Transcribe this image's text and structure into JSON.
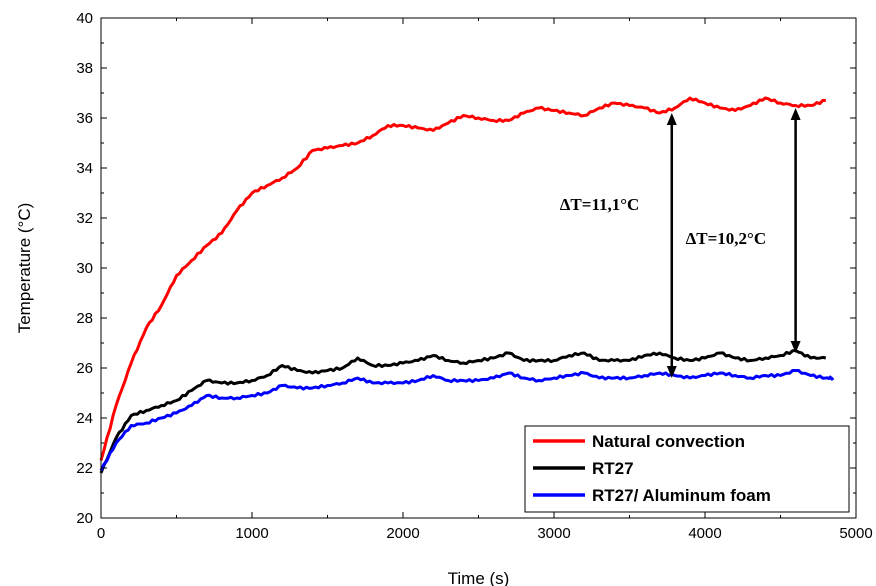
{
  "chart_data": {
    "type": "line",
    "xlabel": "Time (s)",
    "ylabel": "Temperature (°C)",
    "xlim": [
      0,
      5000
    ],
    "ylim": [
      20,
      40
    ],
    "xticks": [
      0,
      1000,
      2000,
      3000,
      4000,
      5000
    ],
    "yticks": [
      20,
      22,
      24,
      26,
      28,
      30,
      32,
      34,
      36,
      38,
      40
    ],
    "x_tick_labels": [
      "0",
      "1000",
      "2000",
      "3000",
      "4000",
      "5000"
    ],
    "y_tick_labels": [
      "20",
      "22",
      "24",
      "26",
      "28",
      "30",
      "32",
      "34",
      "36",
      "38",
      "40"
    ],
    "grid": false,
    "legend_position": "bottom-right",
    "series": [
      {
        "name": "Natural convection",
        "color": "#ff0000",
        "x": [
          0,
          100,
          200,
          300,
          400,
          500,
          600,
          700,
          800,
          900,
          1000,
          1100,
          1200,
          1300,
          1400,
          1500,
          1600,
          1700,
          1800,
          1900,
          2000,
          2100,
          2200,
          2300,
          2400,
          2500,
          2600,
          2700,
          2800,
          2900,
          3000,
          3100,
          3200,
          3300,
          3400,
          3500,
          3600,
          3700,
          3800,
          3900,
          4000,
          4100,
          4200,
          4300,
          4400,
          4500,
          4600,
          4700,
          4800
        ],
        "y": [
          22.3,
          24.5,
          26.2,
          27.6,
          28.5,
          29.7,
          30.3,
          30.9,
          31.4,
          32.3,
          33.0,
          33.3,
          33.6,
          34.0,
          34.7,
          34.8,
          34.9,
          35.0,
          35.3,
          35.7,
          35.7,
          35.6,
          35.5,
          35.8,
          36.1,
          36.0,
          35.9,
          35.9,
          36.2,
          36.4,
          36.3,
          36.2,
          36.1,
          36.4,
          36.6,
          36.5,
          36.4,
          36.2,
          36.4,
          36.8,
          36.6,
          36.4,
          36.3,
          36.5,
          36.8,
          36.6,
          36.5,
          36.5,
          36.7
        ]
      },
      {
        "name": "RT27",
        "color": "#000000",
        "x": [
          0,
          100,
          200,
          300,
          400,
          500,
          600,
          700,
          800,
          900,
          1000,
          1100,
          1200,
          1300,
          1400,
          1500,
          1600,
          1700,
          1800,
          1900,
          2000,
          2100,
          2200,
          2300,
          2400,
          2500,
          2600,
          2700,
          2800,
          2900,
          3000,
          3100,
          3200,
          3300,
          3400,
          3500,
          3600,
          3700,
          3800,
          3900,
          4000,
          4100,
          4200,
          4300,
          4400,
          4500,
          4600,
          4700,
          4800
        ],
        "y": [
          21.8,
          23.2,
          24.1,
          24.3,
          24.5,
          24.7,
          25.1,
          25.5,
          25.4,
          25.4,
          25.5,
          25.7,
          26.1,
          25.9,
          25.8,
          25.9,
          26.0,
          26.4,
          26.1,
          26.1,
          26.2,
          26.3,
          26.5,
          26.3,
          26.2,
          26.3,
          26.4,
          26.6,
          26.3,
          26.3,
          26.3,
          26.5,
          26.6,
          26.3,
          26.3,
          26.3,
          26.5,
          26.6,
          26.4,
          26.3,
          26.4,
          26.6,
          26.4,
          26.3,
          26.4,
          26.5,
          26.7,
          26.4,
          26.4
        ]
      },
      {
        "name": "RT27/ Aluminum foam",
        "color": "#0000ff",
        "x": [
          0,
          100,
          200,
          300,
          400,
          500,
          600,
          700,
          800,
          900,
          1000,
          1100,
          1200,
          1300,
          1400,
          1500,
          1600,
          1700,
          1800,
          1900,
          2000,
          2100,
          2200,
          2300,
          2400,
          2500,
          2600,
          2700,
          2800,
          2900,
          3000,
          3100,
          3200,
          3300,
          3400,
          3500,
          3600,
          3700,
          3800,
          3900,
          4000,
          4100,
          4200,
          4300,
          4400,
          4500,
          4600,
          4700,
          4800,
          4850
        ],
        "y": [
          21.9,
          23.0,
          23.7,
          23.8,
          24.0,
          24.2,
          24.5,
          24.9,
          24.8,
          24.8,
          24.9,
          25.0,
          25.3,
          25.2,
          25.2,
          25.3,
          25.4,
          25.6,
          25.4,
          25.4,
          25.4,
          25.5,
          25.7,
          25.5,
          25.5,
          25.5,
          25.6,
          25.8,
          25.6,
          25.5,
          25.6,
          25.7,
          25.8,
          25.6,
          25.6,
          25.6,
          25.7,
          25.8,
          25.7,
          25.6,
          25.7,
          25.8,
          25.7,
          25.6,
          25.7,
          25.7,
          25.9,
          25.7,
          25.6,
          25.6
        ]
      }
    ],
    "annotations": [
      {
        "text": "ΔT=11,1°C",
        "x": 3780,
        "y_from": 25.6,
        "y_to": 36.2
      },
      {
        "text": "ΔT=10,2°C",
        "x": 4600,
        "y_from": 26.6,
        "y_to": 36.4
      }
    ]
  }
}
